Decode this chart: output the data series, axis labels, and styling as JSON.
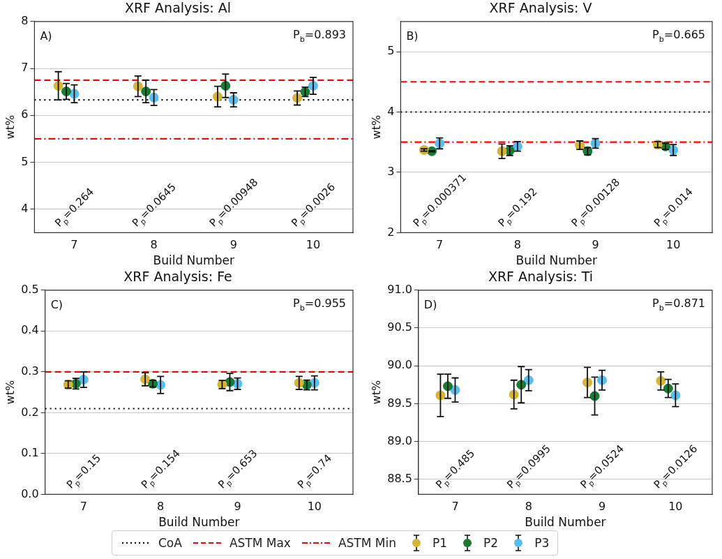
{
  "chart_data": [
    {
      "type": "scatter",
      "title": "XRF Analysis: Al",
      "xlabel": "Build Number",
      "ylabel": "wt%",
      "xlim": [
        6.5,
        10.5
      ],
      "xticks": [
        7,
        8,
        9,
        10
      ],
      "ylim": [
        3.5,
        8
      ],
      "yticks": [
        4,
        5,
        6,
        7,
        8
      ],
      "grid": "y",
      "marker": "circle",
      "legend": "bottom",
      "series": [
        {
          "name": "P1",
          "color": "#d4b537",
          "x": [
            6.8,
            7.8,
            8.8,
            9.8
          ],
          "values": [
            6.63,
            6.62,
            6.4,
            6.37
          ],
          "errors": [
            0.3,
            0.22,
            0.22,
            0.15
          ]
        },
        {
          "name": "P2",
          "color": "#1a7a35",
          "x": [
            6.9,
            7.9,
            8.9,
            9.9
          ],
          "values": [
            6.51,
            6.51,
            6.63,
            6.5
          ],
          "errors": [
            0.17,
            0.24,
            0.25,
            0.1
          ]
        },
        {
          "name": "P3",
          "color": "#5bbcee",
          "x": [
            7,
            8,
            9,
            10
          ],
          "values": [
            6.46,
            6.38,
            6.33,
            6.63
          ],
          "errors": [
            0.19,
            0.17,
            0.15,
            0.18
          ]
        }
      ],
      "ref_lines": [
        {
          "axis": "y",
          "value": 6.33,
          "label": "CoA",
          "color": "#000000",
          "line_style": "dotted"
        },
        {
          "axis": "y",
          "value": 6.75,
          "label": "ASTM Max",
          "color": "#ff0000",
          "line_style": "dashed"
        },
        {
          "axis": "y",
          "value": 5.5,
          "label": "ASTM Min",
          "color": "#ff0000",
          "line_style": "dashdot"
        }
      ],
      "annotations": [
        "A)",
        "P$_{b}$=0.893",
        "P$_{p}$=0.264",
        "P$_{p}$=0.0645",
        "P$_{p}$=0.00948",
        "P$_{p}$=0.0026"
      ]
    },
    {
      "type": "scatter",
      "title": "XRF Analysis: V",
      "xlabel": "Build Number",
      "ylabel": "wt%",
      "xlim": [
        6.5,
        10.5
      ],
      "xticks": [
        7,
        8,
        9,
        10
      ],
      "ylim": [
        2,
        5.5
      ],
      "yticks": [
        2,
        3,
        4,
        5
      ],
      "grid": "y",
      "marker": "circle",
      "series": [
        {
          "color": "#d4b537",
          "x": [
            6.8,
            7.8,
            8.8,
            9.8
          ],
          "values": [
            3.37,
            3.35,
            3.45,
            3.46
          ],
          "errors": [
            0.02,
            0.12,
            0.07,
            0.05
          ]
        },
        {
          "color": "#1a7a35",
          "x": [
            6.9,
            7.9,
            8.9,
            9.9
          ],
          "values": [
            3.35,
            3.36,
            3.35,
            3.43
          ],
          "errors": [
            0.01,
            0.08,
            0.06,
            0.05
          ]
        },
        {
          "color": "#5bbcee",
          "x": [
            7,
            8,
            9,
            10
          ],
          "values": [
            3.48,
            3.43,
            3.48,
            3.37
          ],
          "errors": [
            0.09,
            0.08,
            0.08,
            0.09
          ]
        }
      ],
      "ref_lines": [
        {
          "axis": "y",
          "value": 4.0,
          "color": "#000000",
          "line_style": "dotted"
        },
        {
          "axis": "y",
          "value": 4.5,
          "color": "#ff0000",
          "line_style": "dashed"
        },
        {
          "axis": "y",
          "value": 3.5,
          "color": "#ff0000",
          "line_style": "dashdot"
        }
      ],
      "annotations": [
        "B)",
        "P$_{b}$=0.665",
        "P$_{p}$=0.000371",
        "P$_{p}$=0.192",
        "P$_{p}$=0.00128",
        "P$_{p}$=0.014"
      ]
    },
    {
      "type": "scatter",
      "title": "XRF Analysis: Fe",
      "xlabel": "Build Number",
      "ylabel": "wt%",
      "xlim": [
        6.5,
        10.5
      ],
      "xticks": [
        7,
        8,
        9,
        10
      ],
      "ylim": [
        0,
        0.5
      ],
      "yticks": [
        {
          "value": 0,
          "label": "0.0"
        },
        0.1,
        0.2,
        0.3,
        0.4,
        0.5
      ],
      "grid": "y",
      "marker": "circle",
      "series": [
        {
          "color": "#d4b537",
          "x": [
            6.8,
            7.8,
            8.8,
            9.8
          ],
          "values": [
            0.269,
            0.282,
            0.269,
            0.273
          ],
          "errors": [
            0.009,
            0.016,
            0.01,
            0.016
          ]
        },
        {
          "color": "#1a7a35",
          "x": [
            6.9,
            7.9,
            8.9,
            9.9
          ],
          "values": [
            0.271,
            0.271,
            0.275,
            0.268
          ],
          "errors": [
            0.013,
            0.008,
            0.021,
            0.012
          ]
        },
        {
          "color": "#5bbcee",
          "x": [
            7,
            8,
            9,
            10
          ],
          "values": [
            0.281,
            0.268,
            0.271,
            0.273
          ],
          "errors": [
            0.019,
            0.021,
            0.014,
            0.017
          ]
        }
      ],
      "ref_lines": [
        {
          "axis": "y",
          "value": 0.21,
          "color": "#000000",
          "line_style": "dotted"
        },
        {
          "axis": "y",
          "value": 0.3,
          "color": "#ff0000",
          "line_style": "dashed"
        }
      ],
      "annotations": [
        "C)",
        "P$_{b}$=0.955",
        "P$_{p}$=0.15",
        "P$_{p}$=0.154",
        "P$_{p}$=0.653",
        "P$_{p}$=0.74"
      ]
    },
    {
      "type": "scatter",
      "title": "XRF Analysis: Ti",
      "xlabel": "Build Number",
      "ylabel": "wt%",
      "xlim": [
        6.5,
        10.5
      ],
      "xticks": [
        7,
        8,
        9,
        10
      ],
      "ylim": [
        88.3,
        91
      ],
      "yticks": [
        88.5,
        {
          "value": 89,
          "label": "89.0"
        },
        89.5,
        {
          "value": 90,
          "label": "90.0"
        },
        90.5,
        {
          "value": 91,
          "label": "91.0"
        }
      ],
      "grid": "y",
      "marker": "circle",
      "series": [
        {
          "color": "#d4b537",
          "x": [
            6.8,
            7.8,
            8.8,
            9.8
          ],
          "values": [
            89.61,
            89.62,
            89.78,
            89.8
          ],
          "errors": [
            0.28,
            0.19,
            0.2,
            0.12
          ]
        },
        {
          "color": "#1a7a35",
          "x": [
            6.9,
            7.9,
            8.9,
            9.9
          ],
          "values": [
            89.73,
            89.75,
            89.6,
            89.7
          ],
          "errors": [
            0.16,
            0.24,
            0.25,
            0.12
          ]
        },
        {
          "color": "#5bbcee",
          "x": [
            7,
            8,
            9,
            10
          ],
          "values": [
            89.68,
            89.81,
            89.81,
            89.61
          ],
          "errors": [
            0.16,
            0.14,
            0.13,
            0.15
          ]
        }
      ],
      "annotations": [
        "D)",
        "P$_{b}$=0.871",
        "P$_{p}$=0.485",
        "P$_{p}$=0.0995",
        "P$_{p}$=0.0524",
        "P$_{p}$=0.0126"
      ]
    }
  ]
}
